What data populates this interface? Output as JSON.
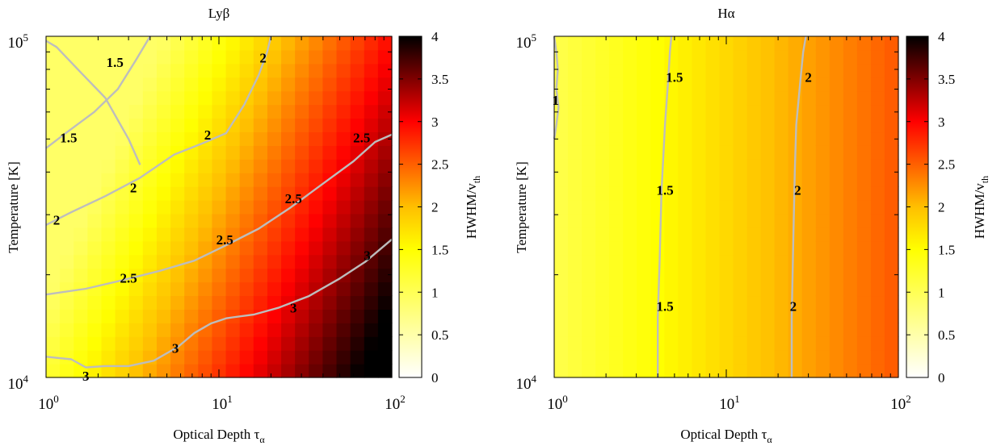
{
  "chart_data": [
    {
      "type": "heatmap",
      "title": "Lyβ",
      "xlabel": "Optical Depth τ",
      "xlabel_sub": "α",
      "ylabel": "Temperature [K]",
      "colorbar_label": "HWHM/v",
      "colorbar_label_sub": "th",
      "x_scale": "log",
      "y_scale": "log",
      "xlim": [
        1,
        100
      ],
      "ylim": [
        10000,
        100000
      ],
      "clim": [
        0,
        4
      ],
      "x_tick_values": [
        1,
        10,
        100
      ],
      "x_tick_labels": [
        {
          "base": "10",
          "exp": "0"
        },
        {
          "base": "10",
          "exp": "1"
        },
        {
          "base": "10",
          "exp": "2"
        }
      ],
      "y_tick_values": [
        10000,
        100000
      ],
      "y_tick_labels": [
        {
          "base": "10",
          "exp": "4"
        },
        {
          "base": "10",
          "exp": "5"
        }
      ],
      "colorbar_ticks": [
        "0",
        "0.5",
        "1",
        "1.5",
        "2",
        "2.5",
        "3",
        "3.5",
        "4"
      ],
      "field": {
        "base": 1.2,
        "tau_coef": 1.55,
        "t_coef": -1.35,
        "min": 0.9,
        "max": 4.1
      },
      "contours": [
        {
          "level": "1.5",
          "points": [
            [
              1.0,
              97000
            ],
            [
              1.15,
              93000
            ],
            [
              1.6,
              78000
            ],
            [
              2.2,
              66000
            ],
            [
              3.0,
              50000
            ],
            [
              3.5,
              42000
            ]
          ]
        },
        {
          "level": "1.5",
          "points": [
            [
              1.0,
              47000
            ],
            [
              1.3,
              52000
            ],
            [
              1.9,
              60000
            ],
            [
              2.6,
              70000
            ],
            [
              3.3,
              85000
            ],
            [
              4.0,
              100000
            ]
          ]
        },
        {
          "level": "2",
          "points": [
            [
              1.0,
              28000
            ],
            [
              1.4,
              30500
            ],
            [
              2.2,
              34000
            ],
            [
              3.5,
              38500
            ],
            [
              5.5,
              45000
            ],
            [
              8.0,
              48500
            ],
            [
              11,
              52000
            ],
            [
              14,
              63000
            ],
            [
              17,
              77000
            ],
            [
              19,
              90000
            ],
            [
              20,
              100000
            ]
          ]
        },
        {
          "level": "2.5",
          "points": [
            [
              1.0,
              17500
            ],
            [
              1.7,
              18200
            ],
            [
              2.8,
              19300
            ],
            [
              4.5,
              20500
            ],
            [
              7.2,
              22000
            ],
            [
              11,
              24400
            ],
            [
              17,
              27300
            ],
            [
              26,
              31500
            ],
            [
              40,
              37000
            ],
            [
              60,
              43000
            ],
            [
              80,
              49000
            ],
            [
              100,
              51500
            ]
          ]
        },
        {
          "level": "3",
          "points": [
            [
              1.0,
              11500
            ],
            [
              1.4,
              11300
            ],
            [
              1.7,
              10700
            ],
            [
              2.2,
              10800
            ],
            [
              3.0,
              10800
            ],
            [
              4.2,
              11200
            ],
            [
              5.8,
              12300
            ],
            [
              7.2,
              13500
            ],
            [
              9.0,
              14400
            ],
            [
              11,
              14900
            ],
            [
              12,
              15000
            ],
            [
              16,
              15300
            ],
            [
              22,
              16000
            ],
            [
              33,
              17300
            ],
            [
              50,
              19500
            ],
            [
              70,
              21800
            ],
            [
              100,
              25400
            ]
          ]
        }
      ],
      "contour_labels": [
        {
          "text": "1.5",
          "x": 2.5,
          "y": 84000
        },
        {
          "text": "1.5",
          "x": 1.35,
          "y": 50500
        },
        {
          "text": "2",
          "x": 18,
          "y": 86500
        },
        {
          "text": "2",
          "x": 8.6,
          "y": 51500
        },
        {
          "text": "2",
          "x": 3.2,
          "y": 36000
        },
        {
          "text": "2",
          "x": 1.15,
          "y": 29000
        },
        {
          "text": "2.5",
          "x": 67,
          "y": 50500
        },
        {
          "text": "2.5",
          "x": 27,
          "y": 33500
        },
        {
          "text": "2.5",
          "x": 10.8,
          "y": 25400
        },
        {
          "text": "2.5",
          "x": 3.0,
          "y": 19600
        },
        {
          "text": "3",
          "x": 72,
          "y": 22800
        },
        {
          "text": "3",
          "x": 27,
          "y": 16000
        },
        {
          "text": "3",
          "x": 5.6,
          "y": 12200
        },
        {
          "text": "3",
          "x": 1.7,
          "y": 10100
        }
      ]
    },
    {
      "type": "heatmap",
      "title": "Hα",
      "xlabel": "Optical Depth τ",
      "xlabel_sub": "α",
      "ylabel": "Temperature [K]",
      "colorbar_label": "HWHM/v",
      "colorbar_label_sub": "th",
      "x_scale": "log",
      "y_scale": "log",
      "xlim": [
        1,
        100
      ],
      "ylim": [
        10000,
        100000
      ],
      "clim": [
        0,
        4
      ],
      "x_tick_values": [
        1,
        10,
        100
      ],
      "x_tick_labels": [
        {
          "base": "10",
          "exp": "0"
        },
        {
          "base": "10",
          "exp": "1"
        },
        {
          "base": "10",
          "exp": "2"
        }
      ],
      "y_tick_values": [
        10000,
        100000
      ],
      "y_tick_labels": [
        {
          "base": "10",
          "exp": "4"
        },
        {
          "base": "10",
          "exp": "5"
        }
      ],
      "colorbar_ticks": [
        "0",
        "0.5",
        "1",
        "1.5",
        "2",
        "2.5",
        "3",
        "3.5",
        "4"
      ],
      "field": {
        "base": 1.05,
        "tau_coef": 0.75,
        "t_coef": 0.0,
        "min": 0.9,
        "max": 4.1
      },
      "contours": [
        {
          "level": "1",
          "points": [
            [
              1.0,
              100000
            ],
            [
              1.03,
              90000
            ],
            [
              1.05,
              80000
            ],
            [
              1.03,
              70000
            ],
            [
              1.06,
              62000
            ],
            [
              1.03,
              55000
            ],
            [
              1.0,
              50000
            ]
          ]
        },
        {
          "level": "1.5",
          "points": [
            [
              4.0,
              10000
            ],
            [
              4.0,
              15000
            ],
            [
              4.1,
              22000
            ],
            [
              4.2,
              35000
            ],
            [
              4.4,
              55000
            ],
            [
              4.6,
              75000
            ],
            [
              4.7,
              90000
            ],
            [
              4.8,
              100000
            ]
          ]
        },
        {
          "level": "2",
          "points": [
            [
              24,
              10000
            ],
            [
              24,
              15000
            ],
            [
              24.5,
              25000
            ],
            [
              25,
              40000
            ],
            [
              25.5,
              55000
            ],
            [
              27,
              75000
            ],
            [
              28,
              90000
            ],
            [
              29,
              100000
            ]
          ]
        }
      ],
      "contour_labels": [
        {
          "text": "1",
          "x": 1.02,
          "y": 65000
        },
        {
          "text": "1.5",
          "x": 5.0,
          "y": 76000
        },
        {
          "text": "1.5",
          "x": 4.4,
          "y": 35500
        },
        {
          "text": "1.5",
          "x": 4.4,
          "y": 16200
        },
        {
          "text": "2",
          "x": 30,
          "y": 76000
        },
        {
          "text": "2",
          "x": 26,
          "y": 35500
        },
        {
          "text": "2",
          "x": 24.5,
          "y": 16200
        }
      ]
    }
  ]
}
